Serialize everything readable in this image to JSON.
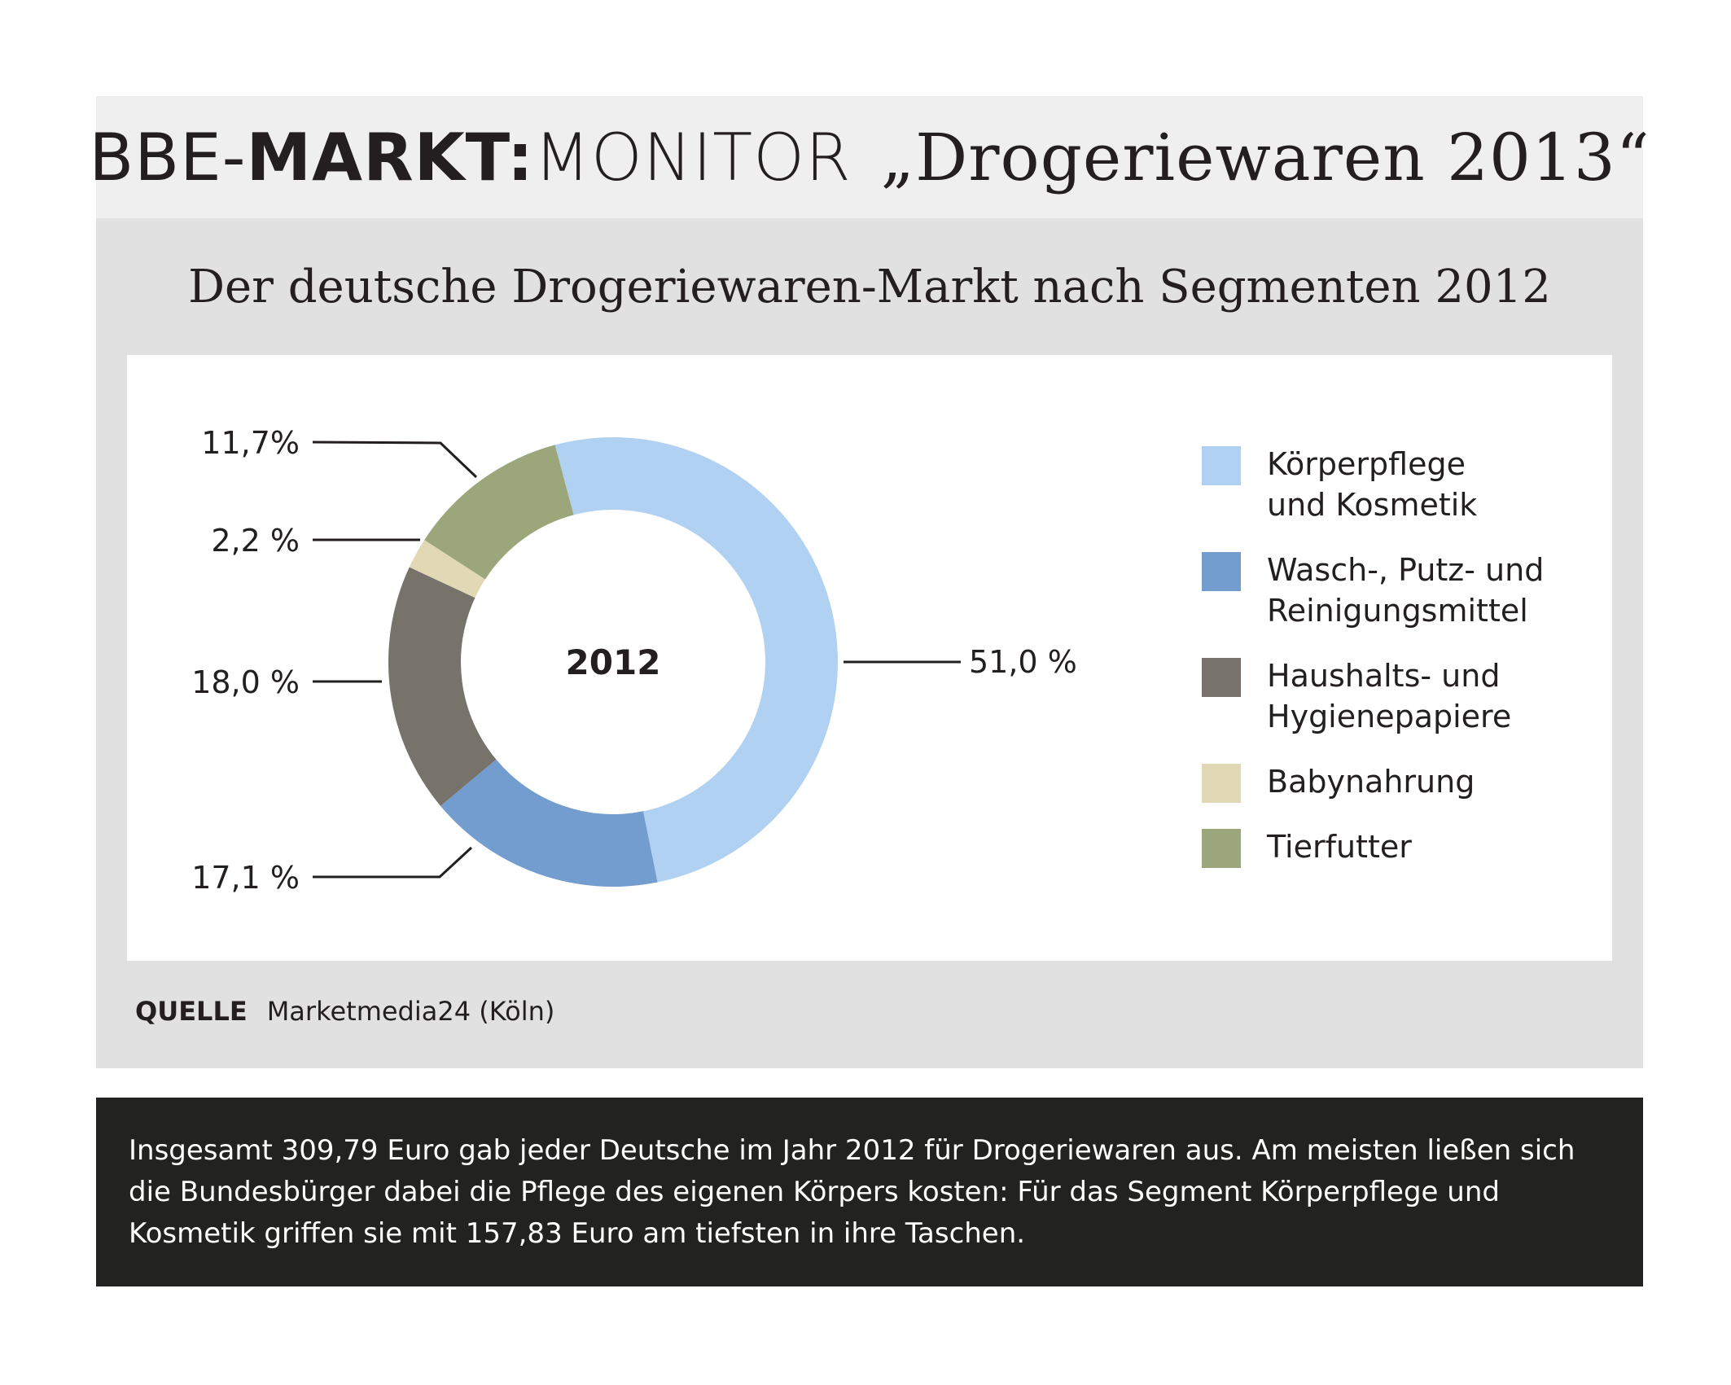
{
  "header": {
    "brand_part1": "BBE-",
    "brand_part2": "MARKT:",
    "brand_part3": "MONITOR",
    "title": "„Drogeriewaren 2013“"
  },
  "subtitle": "Der deutsche Drogeriewaren-Markt nach Segmenten 2012",
  "source": {
    "label": "QUELLE",
    "value": "Marketmedia24 (Köln)"
  },
  "footer": {
    "text": "Insgesamt 309,79 Euro gab jeder Deutsche im Jahr 2012 für Drogeriewaren aus. Am meisten ließen sich die Bundesbürger dabei die Pflege des eigenen Körpers kosten: Für das Segment Körperpflege und Kosmetik griffen sie mit 157,83 Euro am tiefsten in ihre Taschen."
  },
  "chart_data": {
    "type": "pie",
    "variant": "donut",
    "title": "Der deutsche Drogeriewaren-Markt nach Segmenten 2012",
    "center_label": "2012",
    "series": [
      {
        "name": "Körperpflege und Kosmetik",
        "legend_lines": [
          "Körperpflege",
          "und Kosmetik"
        ],
        "value": 51.0,
        "label": "51,0 %",
        "color": "#b0d1f2"
      },
      {
        "name": "Wasch-, Putz- und Reinigungsmittel",
        "legend_lines": [
          "Wasch-, Putz- und",
          "Reinigungsmittel"
        ],
        "value": 17.1,
        "label": "17,1 %",
        "color": "#739ccf"
      },
      {
        "name": "Haushalts- und Hygienepapiere",
        "legend_lines": [
          "Haushalts- und",
          "Hygienepapiere"
        ],
        "value": 18.0,
        "label": "18,0 %",
        "color": "#77736b"
      },
      {
        "name": "Babynahrung",
        "legend_lines": [
          "Babynahrung"
        ],
        "value": 2.2,
        "label": "2,2 %",
        "color": "#e1d8b6"
      },
      {
        "name": "Tierfutter",
        "legend_lines": [
          "Tierfutter"
        ],
        "value": 11.7,
        "label": "11,7%",
        "color": "#9ba77b"
      }
    ],
    "legend_position": "right"
  }
}
